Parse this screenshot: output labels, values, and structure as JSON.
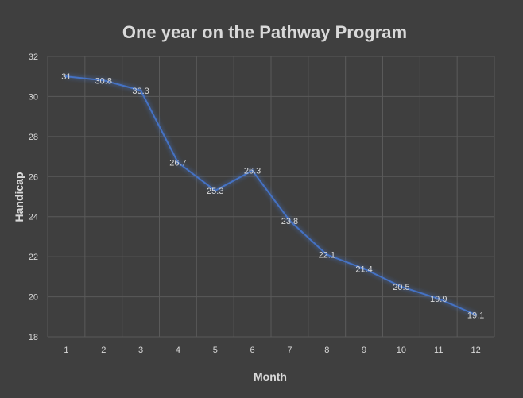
{
  "chart_data": {
    "type": "line",
    "title": "One year on the Pathway Program",
    "xlabel": "Month",
    "ylabel": "Handicap",
    "categories": [
      "1",
      "2",
      "3",
      "4",
      "5",
      "6",
      "7",
      "8",
      "9",
      "10",
      "11",
      "12"
    ],
    "series": [
      {
        "values": [
          31,
          30.8,
          30.3,
          26.7,
          25.3,
          26.3,
          23.8,
          22.1,
          21.4,
          20.5,
          19.9,
          19.1
        ],
        "labels": [
          "31",
          "30.8",
          "30.3",
          "26.7",
          "25.3",
          "26.3",
          "23.8",
          "22.1",
          "21.4",
          "20.5",
          "19.9",
          "19.1"
        ],
        "color": "#4472c4"
      }
    ],
    "ylim": [
      18,
      32
    ],
    "yticks": [
      "18",
      "20",
      "22",
      "24",
      "26",
      "28",
      "30",
      "32"
    ],
    "grid": "both",
    "legend": "none"
  }
}
